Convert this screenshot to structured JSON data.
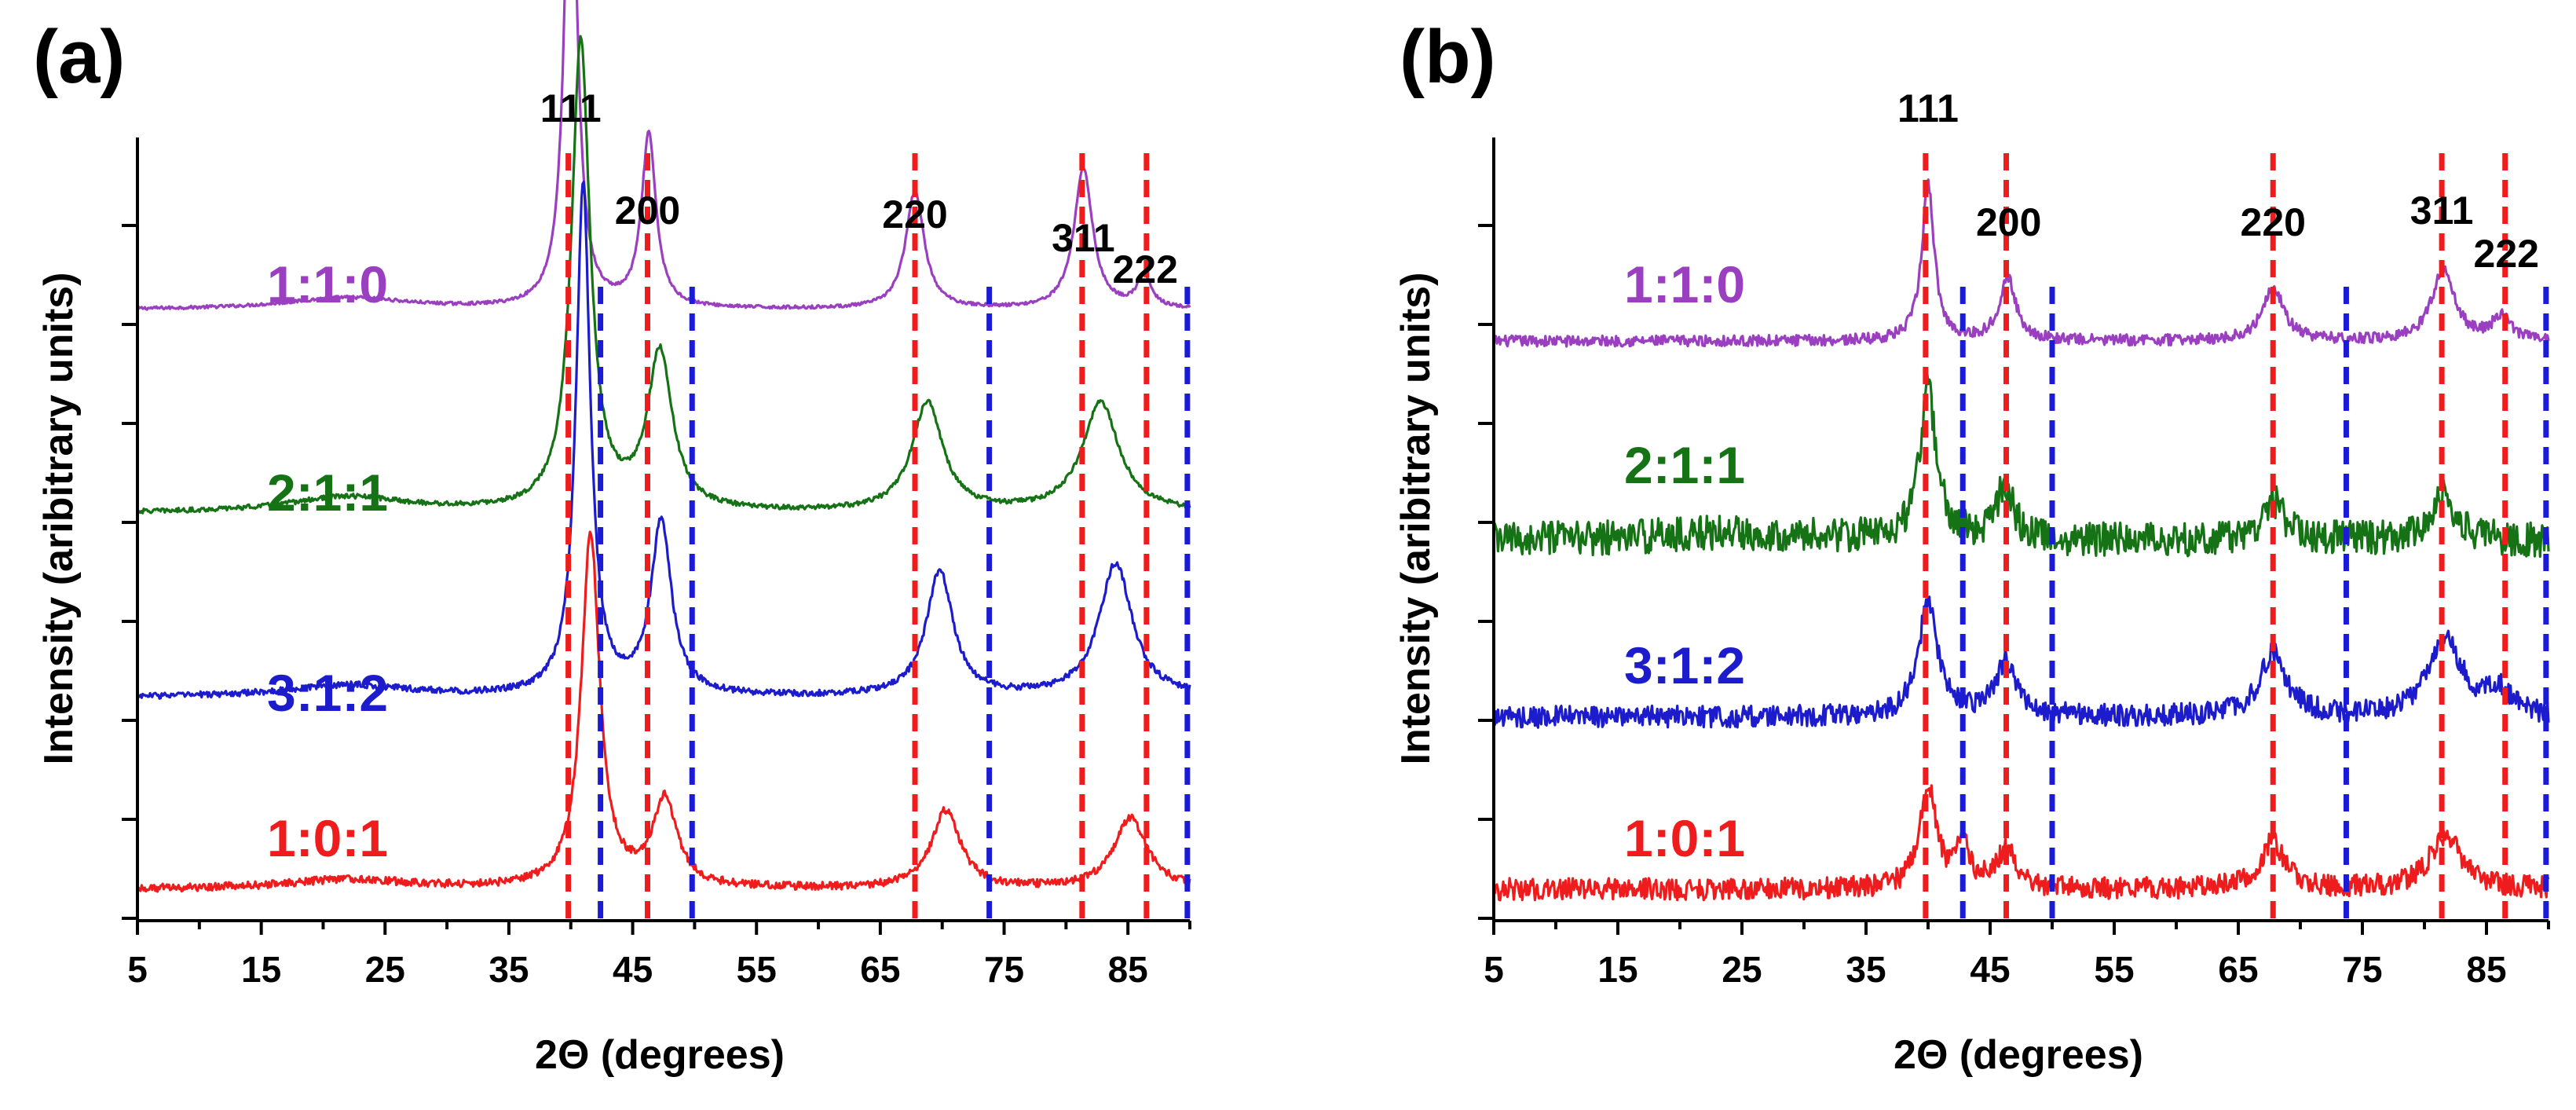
{
  "chart_data": [
    {
      "type": "line",
      "panel_label": "(a)",
      "xlabel": "2Θ  (degrees)",
      "ylabel": "Intensity (aribitrary units)",
      "xlim": [
        5,
        90
      ],
      "xticks": [
        5,
        15,
        25,
        35,
        45,
        55,
        65,
        75,
        85
      ],
      "peak_labels": [
        {
          "text": "111",
          "x": 40.0
        },
        {
          "text": "200",
          "x": 46.2
        },
        {
          "text": "220",
          "x": 67.8
        },
        {
          "text": "311",
          "x": 81.4
        },
        {
          "text": "222",
          "x": 86.4
        }
      ],
      "ref_lines_red": [
        39.8,
        46.2,
        67.8,
        81.3,
        86.5
      ],
      "ref_lines_blue": [
        42.4,
        49.8,
        73.8,
        89.8
      ],
      "series": [
        {
          "name": "1:1:0",
          "color": "#9b3fc1",
          "baseline": 0.78,
          "noise": 0.002,
          "peaks": [
            [
              40.0,
              0.66,
              0.6
            ],
            [
              46.3,
              0.22,
              0.7
            ],
            [
              67.8,
              0.15,
              0.9
            ],
            [
              81.4,
              0.18,
              0.9
            ],
            [
              86.3,
              0.04,
              0.7
            ],
            [
              22,
              0.015,
              6
            ]
          ]
        },
        {
          "name": "2:1:1",
          "color": "#157215",
          "baseline": 0.52,
          "noise": 0.003,
          "peaks": [
            [
              40.8,
              0.6,
              0.9
            ],
            [
              47.2,
              0.2,
              1.2
            ],
            [
              68.8,
              0.14,
              1.5
            ],
            [
              82.8,
              0.14,
              1.8
            ],
            [
              22,
              0.02,
              6
            ]
          ]
        },
        {
          "name": "3:1:2",
          "color": "#1c1ccc",
          "baseline": 0.285,
          "noise": 0.004,
          "peaks": [
            [
              41.0,
              0.65,
              0.7
            ],
            [
              47.3,
              0.22,
              1.0
            ],
            [
              69.8,
              0.16,
              1.3
            ],
            [
              84.0,
              0.17,
              1.6
            ],
            [
              22,
              0.015,
              6
            ]
          ]
        },
        {
          "name": "1:0:1",
          "color": "#ee1c1c",
          "baseline": 0.04,
          "noise": 0.005,
          "peaks": [
            [
              41.6,
              0.45,
              0.9
            ],
            [
              47.6,
              0.11,
              1.2
            ],
            [
              70.3,
              0.1,
              1.4
            ],
            [
              85.2,
              0.09,
              1.6
            ],
            [
              22,
              0.012,
              6
            ]
          ]
        }
      ]
    },
    {
      "type": "line",
      "panel_label": "(b)",
      "xlabel": "2Θ  (degrees)",
      "ylabel": "Intensity (aribitrary units)",
      "xlim": [
        5,
        90
      ],
      "xticks": [
        5,
        15,
        25,
        35,
        45,
        55,
        65,
        75,
        85
      ],
      "peak_labels": [
        {
          "text": "111",
          "x": 40.0
        },
        {
          "text": "200",
          "x": 46.5
        },
        {
          "text": "220",
          "x": 67.8
        },
        {
          "text": "311",
          "x": 81.4
        },
        {
          "text": "222",
          "x": 86.6
        }
      ],
      "ref_lines_red": [
        39.8,
        46.3,
        67.8,
        81.4,
        86.5
      ],
      "ref_lines_blue": [
        42.8,
        50.0,
        73.7,
        89.8
      ],
      "series": [
        {
          "name": "1:1:0",
          "color": "#9b3fc1",
          "baseline": 0.74,
          "noise": 0.007,
          "peaks": [
            [
              40.0,
              0.2,
              0.6
            ],
            [
              46.4,
              0.08,
              0.8
            ],
            [
              67.8,
              0.07,
              1.0
            ],
            [
              81.5,
              0.09,
              1.1
            ],
            [
              86.2,
              0.03,
              0.9
            ]
          ]
        },
        {
          "name": "2:1:1",
          "color": "#157215",
          "baseline": 0.485,
          "noise": 0.022,
          "peaks": [
            [
              40.0,
              0.19,
              0.8
            ],
            [
              46.2,
              0.07,
              0.8
            ],
            [
              67.8,
              0.05,
              1.1
            ],
            [
              81.5,
              0.06,
              1.2
            ],
            [
              24,
              0.01,
              8
            ]
          ]
        },
        {
          "name": "3:1:2",
          "color": "#1c1ccc",
          "baseline": 0.26,
          "noise": 0.014,
          "peaks": [
            [
              40.0,
              0.15,
              0.9
            ],
            [
              46.3,
              0.07,
              1.0
            ],
            [
              67.8,
              0.08,
              1.3
            ],
            [
              81.7,
              0.1,
              1.6
            ],
            [
              86.0,
              0.03,
              1.2
            ]
          ]
        },
        {
          "name": "1:0:1",
          "color": "#ee1c1c",
          "baseline": 0.04,
          "noise": 0.014,
          "peaks": [
            [
              40.0,
              0.13,
              0.8
            ],
            [
              42.8,
              0.06,
              0.6
            ],
            [
              46.3,
              0.05,
              1.0
            ],
            [
              67.8,
              0.06,
              1.2
            ],
            [
              81.7,
              0.07,
              1.5
            ]
          ]
        }
      ]
    }
  ]
}
